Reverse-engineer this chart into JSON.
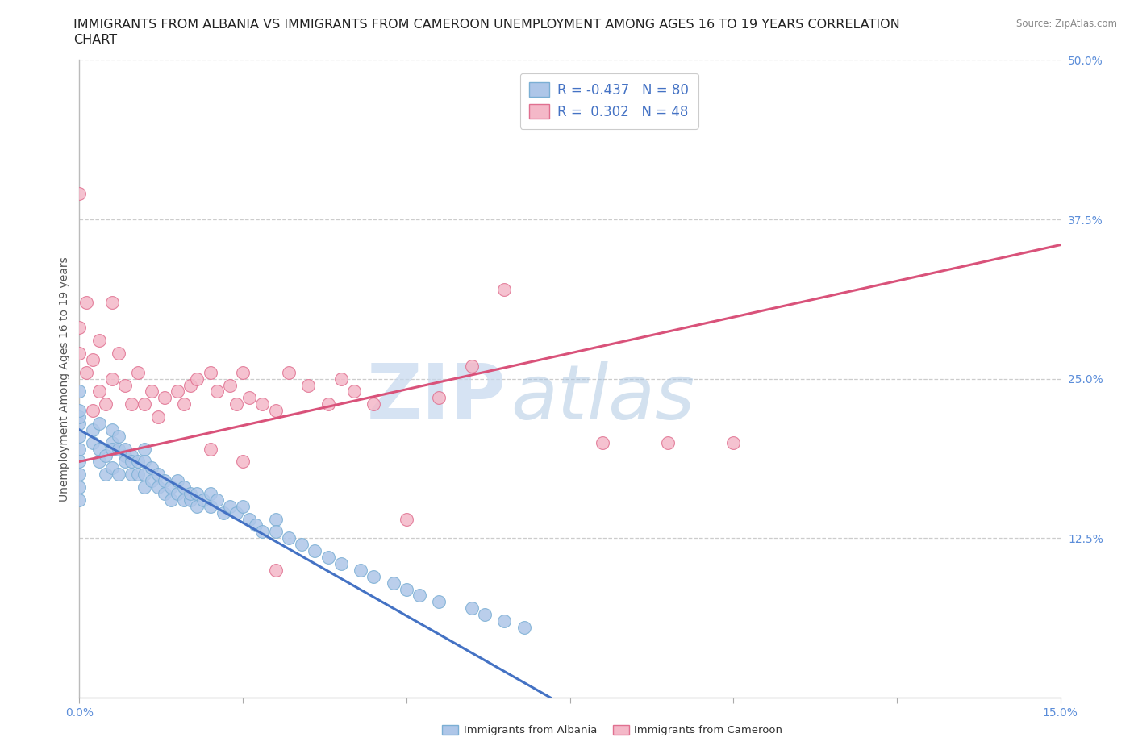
{
  "title_line1": "IMMIGRANTS FROM ALBANIA VS IMMIGRANTS FROM CAMEROON UNEMPLOYMENT AMONG AGES 16 TO 19 YEARS CORRELATION",
  "title_line2": "CHART",
  "source": "Source: ZipAtlas.com",
  "ylabel": "Unemployment Among Ages 16 to 19 years",
  "xlim": [
    0.0,
    0.15
  ],
  "ylim": [
    0.0,
    0.5
  ],
  "xticks": [
    0.0,
    0.025,
    0.05,
    0.075,
    0.1,
    0.125,
    0.15
  ],
  "xticklabels": [
    "0.0%",
    "",
    "",
    "",
    "",
    "",
    "15.0%"
  ],
  "yticks_right": [
    0.125,
    0.25,
    0.375,
    0.5
  ],
  "ytick_right_labels": [
    "12.5%",
    "25.0%",
    "37.5%",
    "50.0%"
  ],
  "series1_color": "#aec6e8",
  "series1_edge": "#7bafd4",
  "series2_color": "#f4b8c8",
  "series2_edge": "#e07090",
  "line1_color": "#4472c4",
  "line2_color": "#d9527a",
  "R1": -0.437,
  "N1": 80,
  "R2": 0.302,
  "N2": 48,
  "legend_label1": "Immigrants from Albania",
  "legend_label2": "Immigrants from Cameroon",
  "watermark_zip": "ZIP",
  "watermark_atlas": "atlas",
  "title_fontsize": 11.5,
  "axis_label_fontsize": 10,
  "tick_fontsize": 10,
  "legend_fontsize": 12,
  "scatter1_x": [
    0.0,
    0.0,
    0.0,
    0.0,
    0.0,
    0.0,
    0.0,
    0.0,
    0.0,
    0.0,
    0.002,
    0.002,
    0.003,
    0.003,
    0.003,
    0.004,
    0.004,
    0.005,
    0.005,
    0.005,
    0.005,
    0.006,
    0.006,
    0.006,
    0.007,
    0.007,
    0.007,
    0.008,
    0.008,
    0.008,
    0.009,
    0.009,
    0.01,
    0.01,
    0.01,
    0.01,
    0.011,
    0.011,
    0.012,
    0.012,
    0.013,
    0.013,
    0.014,
    0.014,
    0.015,
    0.015,
    0.016,
    0.016,
    0.017,
    0.017,
    0.018,
    0.018,
    0.019,
    0.02,
    0.02,
    0.021,
    0.022,
    0.023,
    0.024,
    0.025,
    0.026,
    0.027,
    0.028,
    0.03,
    0.03,
    0.032,
    0.034,
    0.036,
    0.038,
    0.04,
    0.043,
    0.045,
    0.048,
    0.05,
    0.052,
    0.055,
    0.06,
    0.062,
    0.065,
    0.068
  ],
  "scatter1_y": [
    0.215,
    0.22,
    0.195,
    0.185,
    0.175,
    0.205,
    0.165,
    0.225,
    0.155,
    0.24,
    0.2,
    0.21,
    0.195,
    0.185,
    0.215,
    0.175,
    0.19,
    0.2,
    0.195,
    0.21,
    0.18,
    0.195,
    0.205,
    0.175,
    0.19,
    0.185,
    0.195,
    0.19,
    0.175,
    0.185,
    0.185,
    0.175,
    0.195,
    0.185,
    0.175,
    0.165,
    0.18,
    0.17,
    0.175,
    0.165,
    0.17,
    0.16,
    0.165,
    0.155,
    0.17,
    0.16,
    0.155,
    0.165,
    0.155,
    0.16,
    0.16,
    0.15,
    0.155,
    0.16,
    0.15,
    0.155,
    0.145,
    0.15,
    0.145,
    0.15,
    0.14,
    0.135,
    0.13,
    0.14,
    0.13,
    0.125,
    0.12,
    0.115,
    0.11,
    0.105,
    0.1,
    0.095,
    0.09,
    0.085,
    0.08,
    0.075,
    0.07,
    0.065,
    0.06,
    0.055
  ],
  "scatter2_x": [
    0.0,
    0.0,
    0.0,
    0.001,
    0.001,
    0.002,
    0.002,
    0.003,
    0.003,
    0.004,
    0.005,
    0.005,
    0.006,
    0.007,
    0.008,
    0.009,
    0.01,
    0.011,
    0.012,
    0.013,
    0.015,
    0.016,
    0.017,
    0.018,
    0.02,
    0.021,
    0.023,
    0.024,
    0.025,
    0.026,
    0.028,
    0.03,
    0.032,
    0.035,
    0.038,
    0.04,
    0.042,
    0.045,
    0.05,
    0.055,
    0.06,
    0.065,
    0.08,
    0.09,
    0.1,
    0.025,
    0.03,
    0.02
  ],
  "scatter2_y": [
    0.395,
    0.29,
    0.27,
    0.255,
    0.31,
    0.225,
    0.265,
    0.24,
    0.28,
    0.23,
    0.25,
    0.31,
    0.27,
    0.245,
    0.23,
    0.255,
    0.23,
    0.24,
    0.22,
    0.235,
    0.24,
    0.23,
    0.245,
    0.25,
    0.255,
    0.24,
    0.245,
    0.23,
    0.255,
    0.235,
    0.23,
    0.225,
    0.255,
    0.245,
    0.23,
    0.25,
    0.24,
    0.23,
    0.14,
    0.235,
    0.26,
    0.32,
    0.2,
    0.2,
    0.2,
    0.185,
    0.1,
    0.195
  ],
  "line1_x0": 0.0,
  "line1_y0": 0.21,
  "line1_x1": 0.072,
  "line1_y1": 0.0,
  "line2_x0": 0.0,
  "line2_y0": 0.185,
  "line2_x1": 0.15,
  "line2_y1": 0.355
}
